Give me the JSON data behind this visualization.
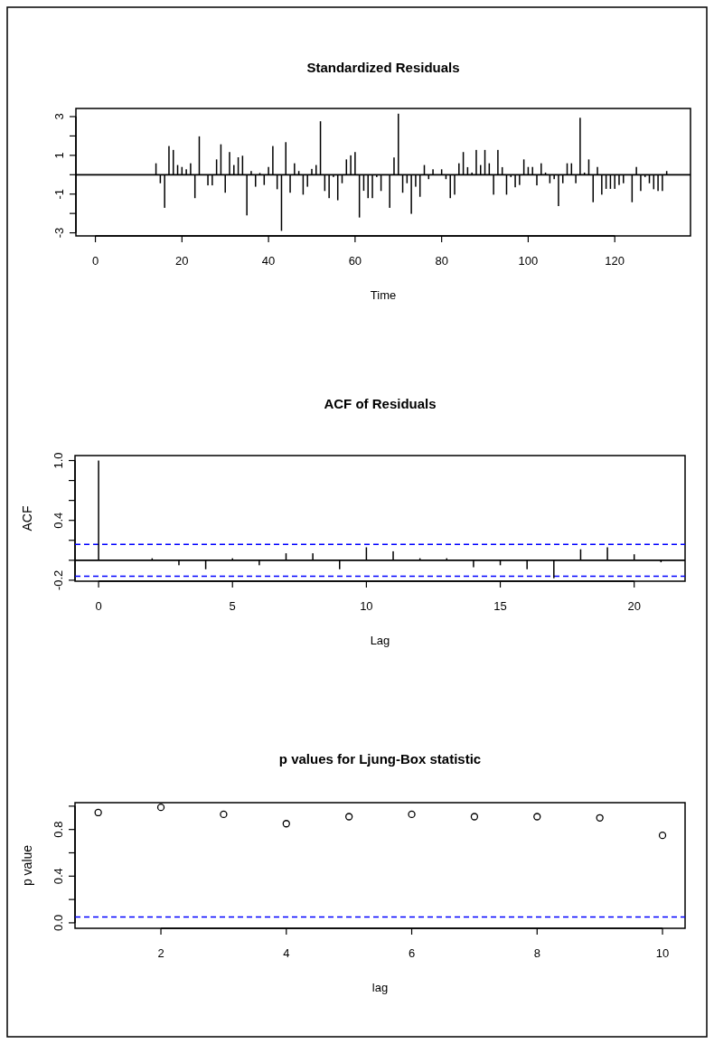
{
  "chart_data": [
    {
      "type": "bar",
      "title": "Standardized Residuals",
      "xlabel": "Time",
      "x": [
        14,
        15,
        16,
        17,
        18,
        19,
        20,
        21,
        22,
        23,
        24,
        25,
        26,
        27,
        28,
        29,
        30,
        31,
        32,
        33,
        34,
        35,
        36,
        37,
        38,
        39,
        40,
        41,
        42,
        43,
        44,
        45,
        46,
        47,
        48,
        49,
        50,
        51,
        52,
        53,
        54,
        55,
        56,
        57,
        58,
        59,
        60,
        61,
        62,
        63,
        64,
        65,
        66,
        67,
        68,
        69,
        70,
        71,
        72,
        73,
        74,
        75,
        76,
        77,
        78,
        79,
        80,
        81,
        82,
        83,
        84,
        85,
        86,
        87,
        88,
        89,
        90,
        91,
        92,
        93,
        94,
        95,
        96,
        97,
        98,
        99,
        100,
        101,
        102,
        103,
        104,
        105,
        106,
        107,
        108,
        109,
        110,
        111,
        112,
        113,
        114,
        115,
        116,
        117,
        118,
        119,
        120,
        121,
        122,
        123,
        124,
        125,
        126,
        127,
        128,
        129,
        130,
        131,
        132
      ],
      "values": [
        0.59,
        -0.44,
        -1.71,
        1.48,
        1.28,
        0.5,
        0.4,
        0.28,
        0.59,
        -1.21,
        1.98,
        0,
        -0.55,
        -0.55,
        0.79,
        1.57,
        -0.93,
        1.17,
        0.5,
        0.9,
        0.98,
        -2.1,
        0.19,
        -0.62,
        0.09,
        -0.53,
        0.4,
        1.48,
        -0.75,
        -2.9,
        1.68,
        -0.93,
        0.59,
        0.19,
        -1.03,
        -0.62,
        0.3,
        0.5,
        2.76,
        -0.84,
        -1.21,
        -0.12,
        -1.32,
        -0.44,
        0.79,
        1.0,
        1.17,
        -2.21,
        -0.83,
        -1.21,
        -1.21,
        -0.12,
        -0.84,
        0,
        -1.71,
        0.89,
        3.15,
        -0.93,
        -0.44,
        -2.02,
        -0.62,
        -1.14,
        0.5,
        -0.23,
        0.28,
        0,
        0.28,
        -0.23,
        -1.21,
        -1.03,
        0.59,
        1.17,
        0.39,
        0.11,
        1.28,
        0.5,
        1.28,
        0.59,
        -1.03,
        1.28,
        0.39,
        -1.03,
        -0.12,
        -0.65,
        -0.53,
        0.79,
        0.4,
        0.4,
        -0.55,
        0.59,
        0.11,
        -0.44,
        -0.23,
        -1.62,
        -0.44,
        0.59,
        0.59,
        -0.44,
        2.94,
        0.11,
        0.79,
        -1.42,
        0.4,
        -1.03,
        -0.73,
        -0.73,
        -0.73,
        -0.53,
        -0.44,
        0,
        -1.42,
        0.4,
        -0.84,
        -0.12,
        -0.44,
        -0.75,
        -0.84,
        -0.84,
        0.19
      ],
      "color": "#000000",
      "xlim": [
        -4.5,
        137.5
      ],
      "xticks": [
        0,
        20,
        40,
        60,
        80,
        100,
        120
      ],
      "ylim": [
        -3.16,
        3.42
      ],
      "yticks": [
        {
          "value": -3,
          "label": "-3"
        },
        {
          "value": -2,
          "label": null
        },
        {
          "value": -1,
          "label": "-1"
        },
        {
          "value": 0,
          "label": null
        },
        1,
        {
          "value": 2,
          "label": null
        },
        3
      ],
      "ref_lines": [
        {
          "axis": "y",
          "value": 0,
          "color": "#000000",
          "line_style": "solid"
        }
      ]
    },
    {
      "type": "bar",
      "title": "ACF of Residuals",
      "xlabel": "Lag",
      "ylabel": "ACF",
      "x": [
        0,
        1,
        2,
        3,
        4,
        5,
        6,
        7,
        8,
        9,
        10,
        11,
        12,
        13,
        14,
        15,
        16,
        17,
        18,
        19,
        20,
        21
      ],
      "values": [
        1.0,
        0,
        0.02,
        -0.05,
        -0.09,
        0.02,
        -0.05,
        0.07,
        0.07,
        -0.09,
        0.13,
        0.09,
        0.02,
        0.02,
        -0.07,
        -0.05,
        -0.09,
        -0.18,
        0.11,
        0.13,
        0.06,
        -0.02
      ],
      "color": "#000000",
      "xlim": [
        -0.88,
        21.9
      ],
      "xticks": [
        0,
        5,
        10,
        15,
        20
      ],
      "ylim": [
        -0.21,
        1.05
      ],
      "yticks": [
        {
          "value": -0.2,
          "label": "-0.2"
        },
        {
          "value": 0,
          "label": null
        },
        {
          "value": 0.2,
          "label": null
        },
        {
          "value": 0.4,
          "label": "0.4"
        },
        {
          "value": 0.6,
          "label": null
        },
        {
          "value": 0.8,
          "label": null
        },
        {
          "value": 1,
          "label": "1.0"
        }
      ],
      "ref_lines": [
        {
          "axis": "y",
          "value": 0,
          "color": "#000000",
          "line_style": "solid"
        },
        {
          "axis": "y",
          "value": 0.16,
          "color": "#0000ff",
          "line_style": "dashed"
        },
        {
          "axis": "y",
          "value": -0.16,
          "color": "#0000ff",
          "line_style": "dashed"
        }
      ]
    },
    {
      "type": "scatter",
      "title": "p values for Ljung-Box statistic",
      "xlabel": "lag",
      "ylabel": "p value",
      "x": [
        1,
        2,
        3,
        4,
        5,
        6,
        7,
        8,
        9,
        10
      ],
      "values": [
        0.945,
        0.99,
        0.93,
        0.85,
        0.91,
        0.93,
        0.91,
        0.91,
        0.9,
        0.75
      ],
      "color": "#000000",
      "marker": "circle",
      "xlim": [
        0.63,
        10.36
      ],
      "xticks": [
        2,
        4,
        6,
        8,
        10
      ],
      "ylim": [
        -0.047,
        1.03
      ],
      "yticks": [
        {
          "value": 0,
          "label": "0.0"
        },
        {
          "value": 0.2,
          "label": null
        },
        {
          "value": 0.4,
          "label": "0.4"
        },
        {
          "value": 0.6,
          "label": null
        },
        {
          "value": 0.8,
          "label": "0.8"
        },
        {
          "value": 1,
          "label": null
        }
      ],
      "ref_lines": [
        {
          "axis": "y",
          "value": 0.05,
          "color": "#0000ff",
          "line_style": "dashed"
        }
      ]
    }
  ]
}
